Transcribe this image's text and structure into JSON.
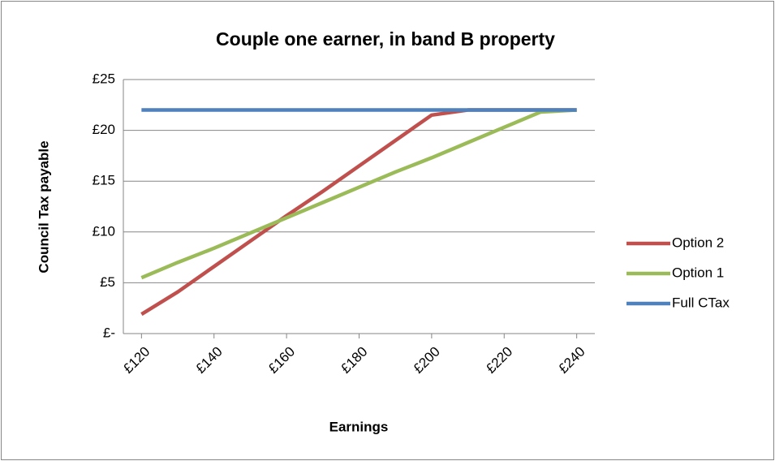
{
  "chart_data": {
    "type": "line",
    "title": "Couple one earner, in band B property",
    "x_label": "Earnings",
    "y_label": "Council Tax payable",
    "x": [
      120,
      130,
      140,
      150,
      160,
      170,
      180,
      190,
      200,
      210,
      220,
      230,
      240
    ],
    "series": [
      {
        "name": "Option 2",
        "color": "#c0504d",
        "values": [
          1.9,
          4.1,
          6.6,
          9.1,
          11.6,
          14.0,
          16.5,
          19.0,
          21.5,
          22,
          22,
          22,
          22
        ]
      },
      {
        "name": "Option 1",
        "color": "#9bbb59",
        "values": [
          5.5,
          7.0,
          8.4,
          9.9,
          11.4,
          12.9,
          14.4,
          15.9,
          17.3,
          18.8,
          20.3,
          21.8,
          22
        ]
      },
      {
        "name": "Full CTax",
        "color": "#4f81bd",
        "values": [
          22,
          22,
          22,
          22,
          22,
          22,
          22,
          22,
          22,
          22,
          22,
          22,
          22
        ]
      }
    ],
    "xlim": [
      115,
      245
    ],
    "xticks": [
      {
        "value": 120,
        "label": "£120"
      },
      {
        "value": 140,
        "label": "£140"
      },
      {
        "value": 160,
        "label": "£160"
      },
      {
        "value": 180,
        "label": "£180"
      },
      {
        "value": 200,
        "label": "£200"
      },
      {
        "value": 220,
        "label": "£220"
      },
      {
        "value": 240,
        "label": "£240"
      }
    ],
    "ylim": [
      0,
      25
    ],
    "yticks": [
      {
        "value": 0,
        "label": "£-"
      },
      {
        "value": 5,
        "label": "£5"
      },
      {
        "value": 10,
        "label": "£10"
      },
      {
        "value": 15,
        "label": "£15"
      },
      {
        "value": 20,
        "label": "£20"
      },
      {
        "value": 25,
        "label": "£25"
      }
    ],
    "grid": true,
    "legend": "right"
  }
}
